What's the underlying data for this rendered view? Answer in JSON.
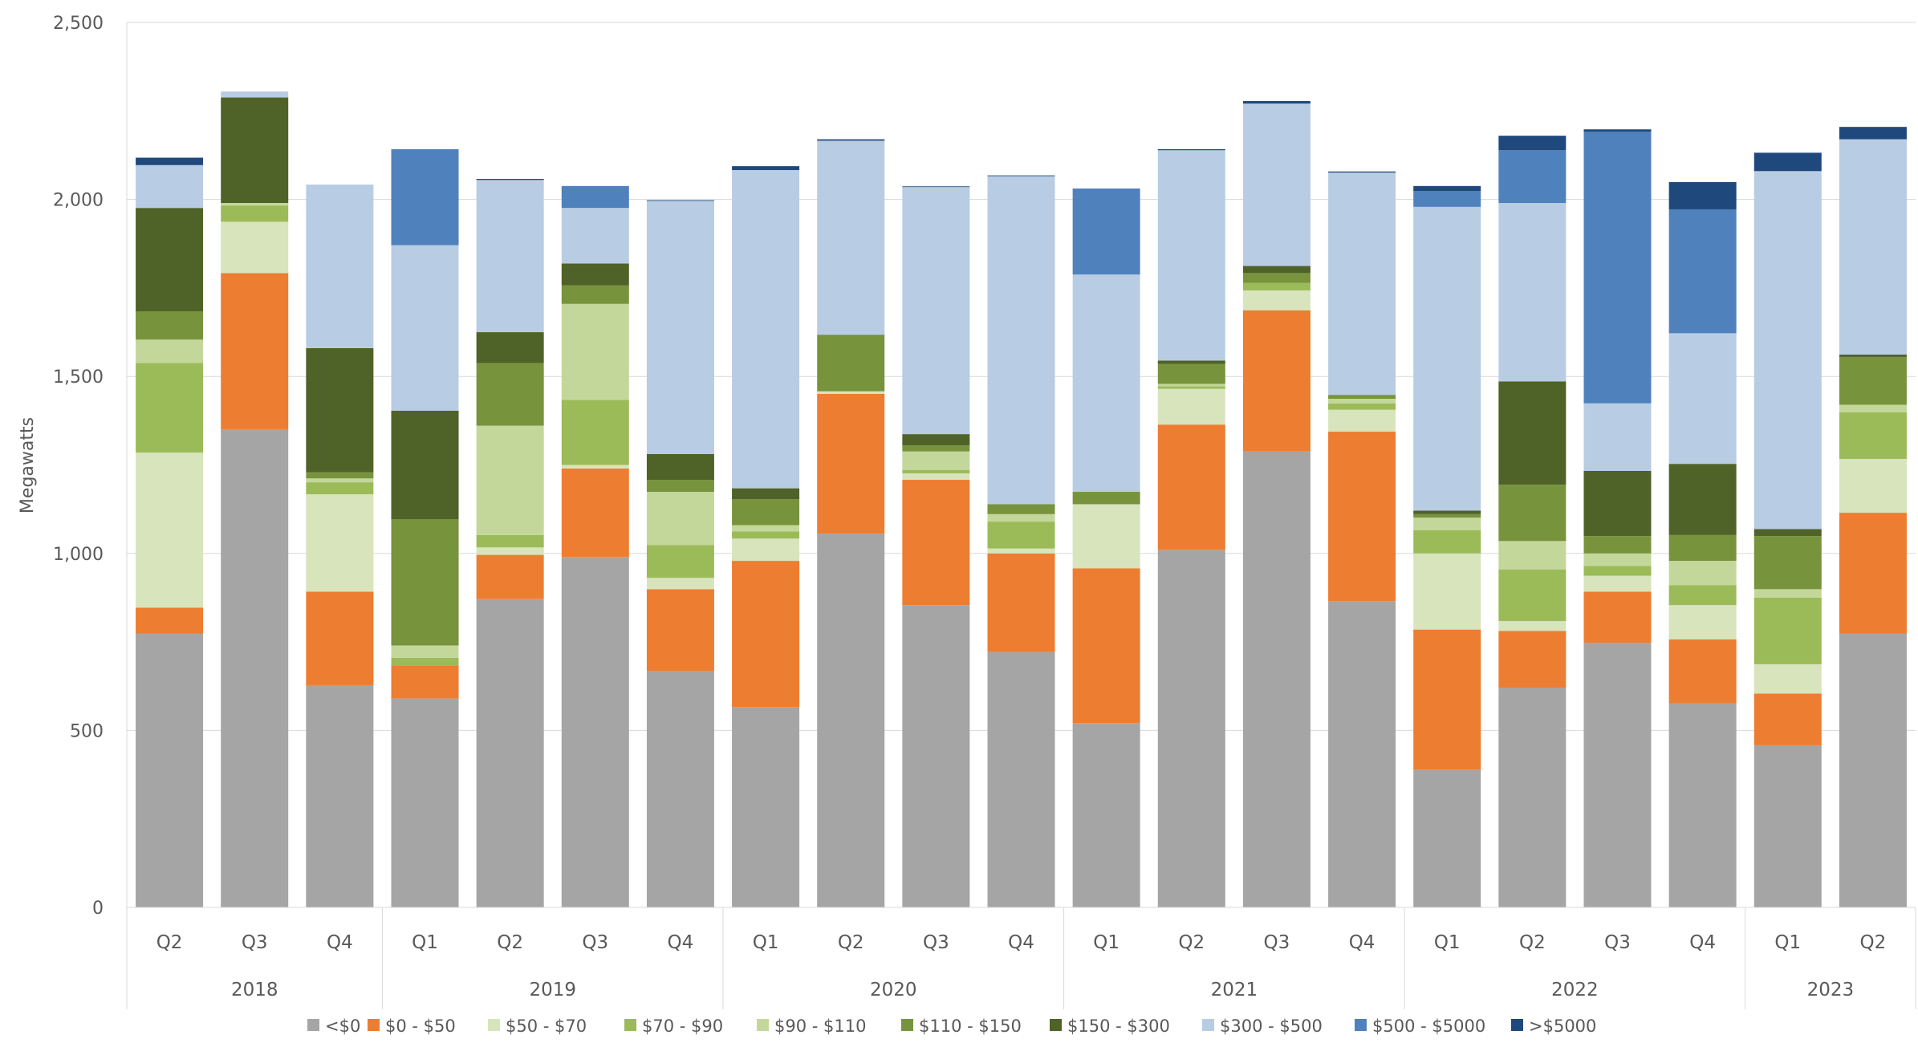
{
  "chart_data": {
    "type": "bar",
    "stacked": true,
    "title": "",
    "xlabel": "",
    "ylabel": "Megawatts",
    "ylim": [
      0,
      2500
    ],
    "yticks": [
      0,
      500,
      1000,
      1500,
      2000,
      2500
    ],
    "ytick_labels": [
      "0",
      "500",
      "1,000",
      "1,500",
      "2,000",
      "2,500"
    ],
    "grid": true,
    "legend_position": "bottom",
    "categories": [
      "Q2",
      "Q3",
      "Q4",
      "Q1",
      "Q2",
      "Q3",
      "Q4",
      "Q1",
      "Q2",
      "Q3",
      "Q4",
      "Q1",
      "Q2",
      "Q3",
      "Q4",
      "Q1",
      "Q2",
      "Q3",
      "Q4",
      "Q1",
      "Q2"
    ],
    "groups": [
      {
        "label": "2018",
        "count": 3
      },
      {
        "label": "2019",
        "count": 4
      },
      {
        "label": "2020",
        "count": 4
      },
      {
        "label": "2021",
        "count": 4
      },
      {
        "label": "2022",
        "count": 4
      },
      {
        "label": "2023",
        "count": 2
      }
    ],
    "series": [
      {
        "name": "<$0",
        "color": "#a5a5a5",
        "values": [
          774,
          1351,
          628,
          590,
          871,
          990,
          667,
          566,
          1056,
          854,
          722,
          521,
          1010,
          1288,
          865,
          389,
          621,
          747,
          576,
          458,
          774
        ]
      },
      {
        "name": "$0 - $50",
        "color": "#ed7d31",
        "values": [
          73,
          441,
          264,
          94,
          125,
          250,
          232,
          413,
          395,
          354,
          278,
          437,
          354,
          399,
          479,
          396,
          160,
          145,
          181,
          146,
          341
        ]
      },
      {
        "name": "$50 - $70",
        "color": "#d8e4bc",
        "values": [
          438,
          145,
          275,
          0,
          21,
          10,
          32,
          63,
          7,
          18,
          14,
          181,
          101,
          56,
          62,
          215,
          28,
          45,
          97,
          83,
          152
        ]
      },
      {
        "name": "$70 - $90",
        "color": "#9bbb59",
        "values": [
          253,
          46,
          34,
          21,
          35,
          184,
          93,
          20,
          0,
          10,
          76,
          0,
          7,
          21,
          18,
          66,
          146,
          28,
          56,
          188,
          132
        ]
      },
      {
        "name": "$90 - $110",
        "color": "#c4d79b",
        "values": [
          66,
          7,
          11,
          35,
          309,
          271,
          150,
          18,
          0,
          52,
          21,
          0,
          7,
          0,
          13,
          35,
          80,
          35,
          69,
          24,
          21
        ]
      },
      {
        "name": "$110 - $150",
        "color": "#77933c",
        "values": [
          80,
          0,
          17,
          357,
          177,
          52,
          34,
          73,
          160,
          17,
          28,
          35,
          56,
          28,
          11,
          10,
          159,
          49,
          73,
          150,
          135
        ]
      },
      {
        "name": "$150 - $300",
        "color": "#4f6228",
        "values": [
          292,
          298,
          351,
          306,
          87,
          62,
          73,
          31,
          0,
          32,
          0,
          0,
          10,
          20,
          0,
          10,
          292,
          184,
          201,
          20,
          7
        ]
      },
      {
        "name": "$300 - $500",
        "color": "#b8cce4",
        "values": [
          121,
          17,
          462,
          468,
          430,
          157,
          715,
          899,
          548,
          698,
          927,
          614,
          594,
          459,
          628,
          858,
          504,
          191,
          369,
          1011,
          608
        ]
      },
      {
        "name": "$500 - $5000",
        "color": "#4f81bd",
        "values": [
          0,
          0,
          0,
          271,
          0,
          62,
          0,
          0,
          0,
          0,
          0,
          243,
          0,
          0,
          0,
          45,
          149,
          767,
          350,
          0,
          0
        ]
      },
      {
        "name": ">$5000",
        "color": "#1f497d",
        "values": [
          21,
          0,
          0,
          0,
          3,
          0,
          2,
          11,
          4,
          2,
          2,
          0,
          3,
          7,
          3,
          14,
          41,
          7,
          77,
          52,
          35
        ]
      }
    ]
  }
}
